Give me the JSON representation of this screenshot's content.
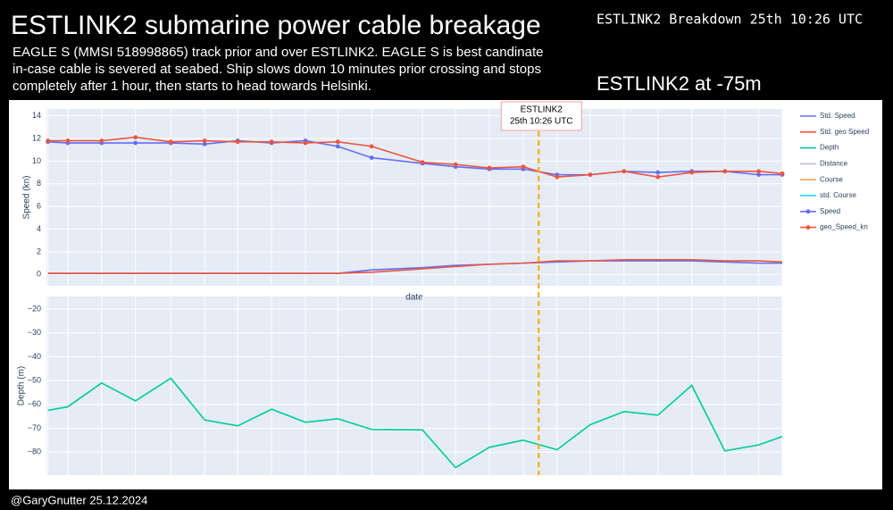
{
  "header": {
    "title": "ESTLINK2  submarine power cable breakage",
    "right": "ESTLINK2 Breakdown 25th 10:26     UTC",
    "description": [
      "EAGLE S (MMSI 518998865) track prior and over ESTLINK2.  EAGLE S is best candinate",
      "in-case cable is severed at seabed. Ship slows down 10 minutes prior crossing and stops",
      "completely after 1 hour, then starts to head towards Helsinki."
    ],
    "depth_note": "ESTLINK2 at -75m"
  },
  "footer": "@GaryGnutter  25.12.2024",
  "chart_data": {
    "type": "line",
    "x_label": "date",
    "y_label": "Speed (kn)",
    "y2_label": "Depth (m)",
    "x": [
      0.2,
      2.9,
      7.5,
      12.1,
      16.9,
      21.5,
      26,
      30.6,
      35.2,
      39.6,
      44.2,
      51.1,
      55.6,
      60.2,
      64.8,
      69.4,
      73.9,
      78.5,
      83.1,
      87.7,
      92.2,
      96.8,
      100
    ],
    "xlim": [
      0,
      100
    ],
    "ylim": [
      -1,
      14.6
    ],
    "yticks": [
      0,
      2,
      4,
      6,
      8,
      10,
      12,
      14
    ],
    "y2lim": [
      -89.7,
      -14.7
    ],
    "y2ticks": [
      {
        "value": -20,
        "label": "−20"
      },
      {
        "value": -30,
        "label": "−30"
      },
      {
        "value": -40,
        "label": "−40"
      },
      {
        "value": -50,
        "label": "−50"
      },
      {
        "value": -60,
        "label": "−60"
      },
      {
        "value": -70,
        "label": "−70"
      },
      {
        "value": -80,
        "label": "−80"
      }
    ],
    "grid": true,
    "series": [
      {
        "name": "Std. Speed",
        "color": "#636efa",
        "values": [
          0.1,
          0.1,
          0.1,
          0.1,
          0.1,
          0.1,
          0.1,
          0.1,
          0.1,
          0.1,
          0.4,
          0.6,
          0.8,
          0.9,
          1.0,
          1.1,
          1.2,
          1.2,
          1.2,
          1.2,
          1.1,
          1.0,
          1.0
        ]
      },
      {
        "name": "Std. geo Speed",
        "color": "#ef553b",
        "values": [
          0.1,
          0.1,
          0.1,
          0.1,
          0.1,
          0.1,
          0.1,
          0.1,
          0.1,
          0.1,
          0.2,
          0.5,
          0.7,
          0.9,
          1.0,
          1.2,
          1.2,
          1.3,
          1.3,
          1.3,
          1.2,
          1.2,
          1.1
        ]
      },
      {
        "name": "Depth",
        "color": "#00cc96",
        "axis": "y2",
        "values": [
          -62.5,
          -61,
          -51,
          -58.5,
          -49,
          -66.5,
          -69,
          -62,
          -67.5,
          -66,
          -70.5,
          -70.7,
          -86.5,
          -78,
          -75,
          -79,
          -68.5,
          -63,
          -64.5,
          -52,
          -79.5,
          -77,
          -73.5
        ]
      },
      {
        "name": "Distance",
        "color": "#c8b8f0"
      },
      {
        "name": "Course",
        "color": "#ffa15a"
      },
      {
        "name": "std. Course",
        "color": "#19d3f3"
      },
      {
        "name": "Speed",
        "color": "#636efa",
        "markers": true,
        "values": [
          11.7,
          11.6,
          11.6,
          11.6,
          11.6,
          11.5,
          11.8,
          11.6,
          11.8,
          11.3,
          10.3,
          9.8,
          9.5,
          9.3,
          9.3,
          8.8,
          8.8,
          9.1,
          9.0,
          9.1,
          9.1,
          8.8,
          8.8
        ]
      },
      {
        "name": "geo_Speed_kn",
        "color": "#ef553b",
        "markers": true,
        "values": [
          11.8,
          11.8,
          11.8,
          12.1,
          11.7,
          11.8,
          11.7,
          11.7,
          11.6,
          11.7,
          11.3,
          9.9,
          9.7,
          9.4,
          9.5,
          8.6,
          8.8,
          9.1,
          8.6,
          9.0,
          9.1,
          9.1,
          8.9
        ]
      }
    ],
    "annotation": {
      "text": [
        "ESTLINK2",
        "25th 10:26 UTC"
      ],
      "x": 66.9,
      "color": "#ffa500"
    }
  }
}
